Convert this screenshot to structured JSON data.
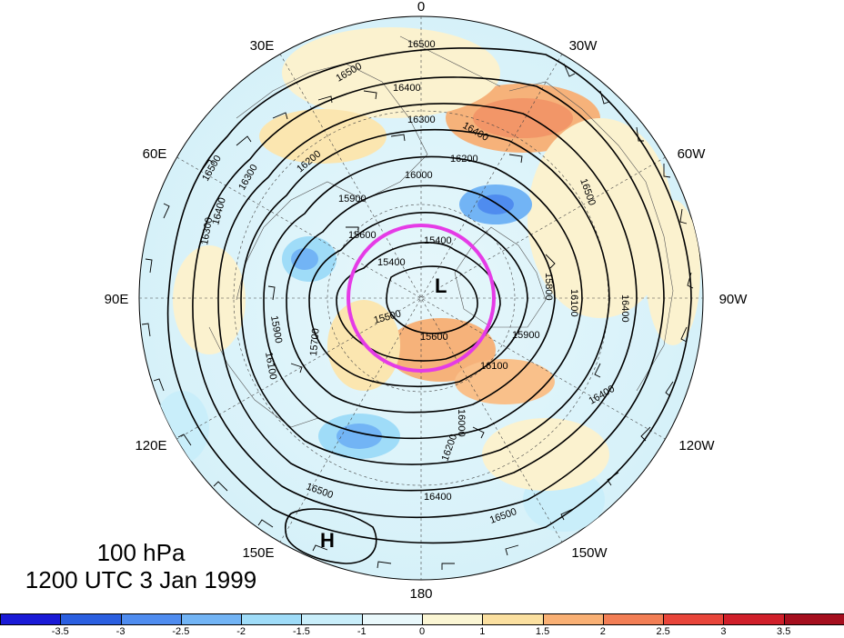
{
  "map": {
    "projection": "north-polar-stereographic",
    "longitude_labels": [
      "0",
      "30W",
      "60W",
      "90W",
      "120W",
      "150W",
      "180",
      "150E",
      "120E",
      "90E",
      "60E",
      "30E"
    ],
    "contour_labels": [
      "16500",
      "16500",
      "16400",
      "16300",
      "16400",
      "16200",
      "16200",
      "16300",
      "16000",
      "15900",
      "15600",
      "15400",
      "15400",
      "15500",
      "15600",
      "15900",
      "16100",
      "16300",
      "16500",
      "16500",
      "16400",
      "16400",
      "15900",
      "15700",
      "16100",
      "16500",
      "16400",
      "16500",
      "16200",
      "16000",
      "15800",
      "16100",
      "16400"
    ],
    "high_label": "H",
    "low_label": "L",
    "highlight_circle_color": "#e53be6",
    "contour_color": "#000000"
  },
  "caption": {
    "level": "100 hPa",
    "time": "1200 UTC 3 Jan 1999"
  },
  "colorbar": {
    "ticks": [
      "-3.5",
      "-3",
      "-2.5",
      "-2",
      "-1.5",
      "-1",
      "0",
      "1",
      "1.5",
      "2",
      "2.5",
      "3",
      "3.5"
    ],
    "colors": [
      "#1a1ad6",
      "#2b5fe0",
      "#4f8cef",
      "#72b4f5",
      "#9fdcf8",
      "#c9eefa",
      "#e9f8fb",
      "#fbf6d4",
      "#fbe0a0",
      "#f9b074",
      "#f27e55",
      "#e8453a",
      "#d01f2a",
      "#a50f1e"
    ]
  }
}
